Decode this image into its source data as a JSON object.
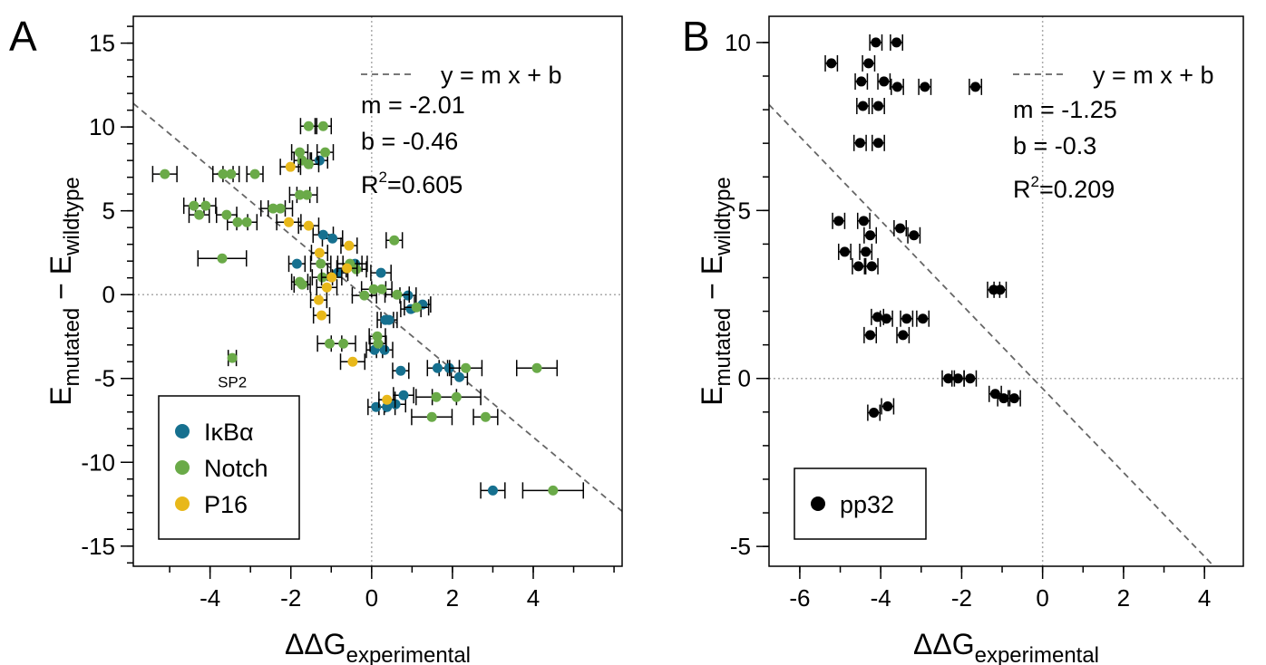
{
  "chart_data": [
    {
      "type": "scatter",
      "label": "A",
      "xlabel": [
        {
          "text": "ΔΔG"
        },
        {
          "text": "experimental",
          "sub": true
        }
      ],
      "ylabel": [
        {
          "text": "E"
        },
        {
          "text": "mutated",
          "sub": true
        },
        {
          "text": " − E"
        },
        {
          "text": "wildtype",
          "sub": true
        }
      ],
      "xlim": [
        -5.9,
        6.2
      ],
      "ylim": [
        -16.2,
        16.6
      ],
      "xticks": [
        -4,
        -2,
        0,
        2,
        4
      ],
      "yticks": [
        -15,
        -10,
        -5,
        0,
        5,
        10,
        15
      ],
      "xminor": [
        -5,
        -4,
        -3,
        -2,
        -1,
        0,
        1,
        2,
        3,
        4,
        5,
        6
      ],
      "yminor": [
        -16,
        -15,
        -14,
        -13,
        -12,
        -11,
        -10,
        -9,
        -8,
        -7,
        -6,
        -5,
        -4,
        -3,
        -2,
        -1,
        0,
        1,
        2,
        3,
        4,
        5,
        6,
        7,
        8,
        9,
        10,
        11,
        12,
        13,
        14,
        15,
        16
      ],
      "hline": 0,
      "vline": 0,
      "fit": {
        "slope": -2.01,
        "intercept": -0.46,
        "color": "#666666"
      },
      "fit_text": "y = m x + b",
      "stats": [
        "m =  -2.01",
        "b =  -0.46"
      ],
      "r2": {
        "base": "R",
        "sup": "2",
        "rest": "=0.605"
      },
      "annotation": "SP2",
      "legend": "bottom-left",
      "series": [
        {
          "name": "IκBα",
          "color": "#16708f",
          "x": [
            -1.2,
            -0.97,
            -1.29,
            -1.85,
            -0.84,
            -0.41,
            0.23,
            0.34,
            0.43,
            0.07,
            0.32,
            0.11,
            0.38,
            0.59,
            0.72,
            0.79,
            0.9,
            0.97,
            1.26,
            1.63,
            1.92,
            2.17,
            3.0
          ],
          "y": [
            3.57,
            3.35,
            8.0,
            1.84,
            1.3,
            1.84,
            1.3,
            -1.51,
            -1.51,
            -3.3,
            -3.3,
            -6.7,
            -6.7,
            -6.54,
            -4.54,
            -6.0,
            -0.05,
            -0.86,
            -0.59,
            -4.38,
            -4.38,
            -4.92,
            -11.68
          ],
          "xerr": [
            0.25,
            0.25,
            0.2,
            0.2,
            0.25,
            0.3,
            0.25,
            0.2,
            0.2,
            0.2,
            0.2,
            0.2,
            0.2,
            0.25,
            0.2,
            0.25,
            0.2,
            0.25,
            0.2,
            0.25,
            0.25,
            0.2,
            0.3
          ]
        },
        {
          "name": "Notch",
          "color": "#6aaa48",
          "x": [
            -5.12,
            -4.4,
            -4.27,
            -4.11,
            -3.68,
            -3.48,
            -3.59,
            -3.32,
            -3.09,
            -2.89,
            -3.7,
            -3.45,
            -2.44,
            -2.26,
            -1.78,
            -1.56,
            -1.2,
            -1.15,
            -1.78,
            -1.6,
            -1.72,
            -1.56,
            -1.78,
            -1.72,
            -1.04,
            -0.7,
            -1.26,
            -1.22,
            -0.54,
            -0.38,
            -0.18,
            0.05,
            0.14,
            0.16,
            0.25,
            0.56,
            0.63,
            1.11,
            1.6,
            1.49,
            2.1,
            2.33,
            2.82,
            4.09,
            4.49
          ],
          "y": [
            7.19,
            5.3,
            4.76,
            5.3,
            7.19,
            7.19,
            4.76,
            4.32,
            4.32,
            7.19,
            2.16,
            -3.78,
            5.14,
            5.14,
            8.49,
            10.05,
            10.05,
            8.49,
            5.95,
            5.95,
            8.0,
            7.78,
            0.76,
            0.6,
            -2.92,
            -2.92,
            1.84,
            1.03,
            1.84,
            1.51,
            -0.05,
            0.32,
            -2.49,
            -2.92,
            0.32,
            3.24,
            0.0,
            -0.76,
            -6.11,
            -7.3,
            -6.11,
            -4.38,
            -7.3,
            -4.38,
            -11.68
          ],
          "xerr": [
            0.3,
            0.25,
            0.25,
            0.25,
            0.25,
            0.2,
            0.25,
            0.25,
            0.25,
            0.2,
            0.6,
            0.1,
            0.3,
            0.3,
            0.2,
            0.2,
            0.2,
            0.2,
            0.25,
            0.25,
            0.2,
            0.25,
            0.2,
            0.2,
            0.3,
            0.3,
            0.25,
            0.25,
            0.3,
            0.25,
            0.3,
            0.3,
            0.2,
            0.2,
            0.25,
            0.2,
            0.3,
            0.3,
            0.5,
            0.5,
            0.6,
            0.4,
            0.3,
            0.5,
            0.75
          ]
        },
        {
          "name": "P16",
          "color": "#e8b81a",
          "x": [
            -2.01,
            -2.05,
            -1.56,
            -1.29,
            -1.31,
            -1.24,
            -1.11,
            -0.56,
            -0.47,
            0.38,
            -0.99,
            -0.61
          ],
          "y": [
            7.62,
            4.32,
            4.11,
            2.49,
            -0.32,
            -1.24,
            0.43,
            2.92,
            -4.0,
            -6.27,
            1.03,
            1.57
          ],
          "xerr": [
            0.25,
            0.3,
            0.25,
            0.2,
            0.2,
            0.2,
            0.25,
            0.2,
            0.3,
            0.2,
            0.25,
            0.25
          ]
        }
      ]
    },
    {
      "type": "scatter",
      "label": "B",
      "xlabel": [
        {
          "text": "ΔΔG"
        },
        {
          "text": "experimental",
          "sub": true
        }
      ],
      "ylabel": [
        {
          "text": "E"
        },
        {
          "text": "mutated",
          "sub": true
        },
        {
          "text": " − E"
        },
        {
          "text": "wildtype",
          "sub": true
        }
      ],
      "xlim": [
        -6.76,
        4.96
      ],
      "ylim": [
        -5.59,
        10.78
      ],
      "xticks": [
        -6,
        -4,
        -2,
        0,
        2,
        4
      ],
      "yticks": [
        -5,
        0,
        5,
        10
      ],
      "xminor": [
        -6,
        -5,
        -4,
        -3,
        -2,
        -1,
        0,
        1,
        2,
        3,
        4
      ],
      "yminor": [
        -5,
        -4,
        -3,
        -2,
        -1,
        0,
        1,
        2,
        3,
        4,
        5,
        6,
        7,
        8,
        9,
        10
      ],
      "hline": 0,
      "vline": 0,
      "fit": {
        "slope": -1.25,
        "intercept": -0.3,
        "color": "#666666"
      },
      "fit_text": "y = m x + b",
      "stats": [
        "m =  -1.25",
        "b =  -0.3"
      ],
      "r2": {
        "base": "R",
        "sup": "2",
        "rest": "=0.209"
      },
      "legend": "bottom-left",
      "series": [
        {
          "name": "pp32",
          "color": "#000000",
          "x": [
            -5.22,
            -4.3,
            -4.12,
            -3.61,
            -4.48,
            -3.92,
            -4.44,
            -4.06,
            -3.59,
            -2.91,
            -1.66,
            -4.51,
            -4.06,
            -5.04,
            -4.42,
            -4.89,
            -4.37,
            -4.55,
            -4.22,
            -4.26,
            -3.52,
            -3.18,
            -4.08,
            -3.86,
            -3.36,
            -2.96,
            -4.26,
            -3.45,
            -1.21,
            -1.05,
            -2.33,
            -2.09,
            -1.79,
            -1.17,
            -0.96,
            -0.7,
            -4.17,
            -3.83
          ],
          "y": [
            9.38,
            9.38,
            10.0,
            10.0,
            8.84,
            8.84,
            8.11,
            8.11,
            8.68,
            8.68,
            8.68,
            7.01,
            7.01,
            4.69,
            4.69,
            3.77,
            3.77,
            3.34,
            3.34,
            4.26,
            4.47,
            4.26,
            1.83,
            1.78,
            1.78,
            1.78,
            1.29,
            1.29,
            2.64,
            2.64,
            0,
            0,
            0,
            -0.46,
            -0.59,
            -0.59,
            -1.02,
            -0.83
          ],
          "xerr": [
            0.15,
            0.15,
            0.15,
            0.15,
            0.15,
            0.15,
            0.15,
            0.15,
            0.15,
            0.15,
            0.15,
            0.15,
            0.15,
            0.15,
            0.15,
            0.15,
            0.15,
            0.15,
            0.15,
            0.15,
            0.15,
            0.15,
            0.15,
            0.15,
            0.15,
            0.15,
            0.15,
            0.15,
            0.15,
            0.15,
            0.15,
            0.15,
            0.15,
            0.15,
            0.15,
            0.15,
            0.15,
            0.15
          ]
        }
      ]
    }
  ]
}
